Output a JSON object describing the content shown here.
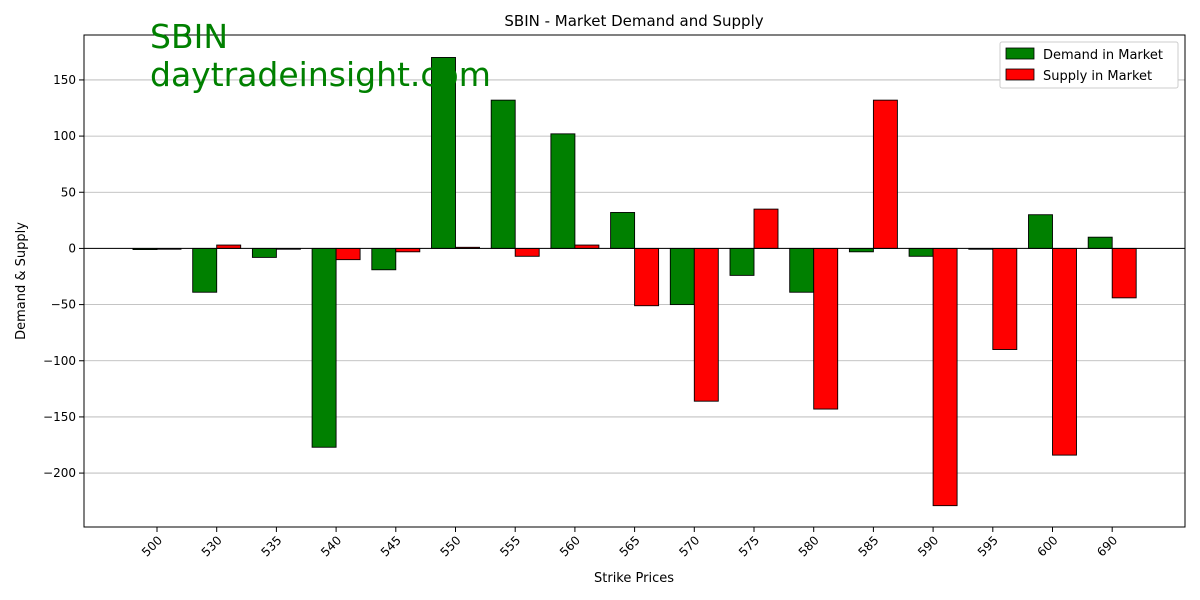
{
  "chart_data": {
    "type": "bar",
    "title": "SBIN - Market Demand and Supply",
    "xlabel": "Strike Prices",
    "ylabel": "Demand & Supply",
    "categories": [
      "500",
      "530",
      "535",
      "540",
      "545",
      "550",
      "555",
      "560",
      "565",
      "570",
      "575",
      "580",
      "585",
      "590",
      "595",
      "600",
      "690"
    ],
    "series": [
      {
        "name": "Demand in Market",
        "color": "#008000",
        "values": [
          -1,
          -39,
          -8,
          -177,
          -19,
          170,
          132,
          102,
          32,
          -50,
          -24,
          -39,
          -3,
          -7,
          0,
          30,
          10
        ]
      },
      {
        "name": "Supply in Market",
        "color": "#ff0000",
        "values": [
          0,
          3,
          0,
          -10,
          -3,
          1,
          -7,
          3,
          -51,
          -136,
          35,
          -143,
          132,
          -229,
          -90,
          -184,
          -44
        ]
      }
    ],
    "ylim": [
      -248,
      190
    ],
    "yticks": [
      -200,
      -150,
      -100,
      -50,
      0,
      50,
      100,
      150
    ],
    "grid": "y",
    "legend": "top-right"
  },
  "watermark": {
    "line1": "SBIN",
    "line2": "daytradeinsight.com",
    "color": "#008000"
  }
}
